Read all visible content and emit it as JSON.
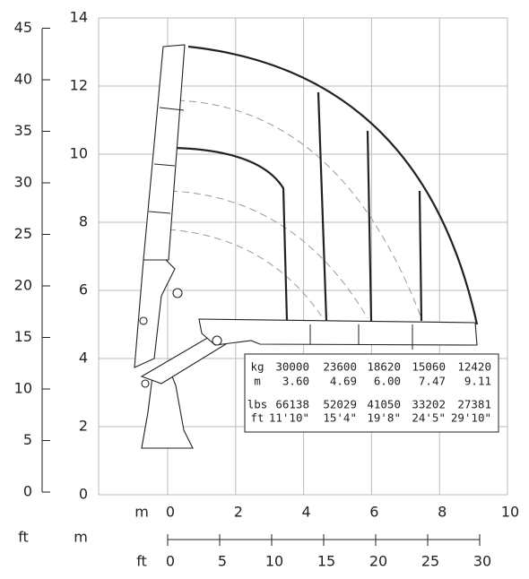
{
  "axes": {
    "meters_left": {
      "ticks": [
        "0",
        "2",
        "4",
        "6",
        "8",
        "10",
        "12",
        "14"
      ]
    },
    "feet_left": {
      "unit": "ft",
      "ticks": [
        "0",
        "5",
        "10",
        "15",
        "20",
        "25",
        "30",
        "35",
        "40",
        "45"
      ]
    },
    "meters_bottom": {
      "unit": "m",
      "ticks": [
        "0",
        "2",
        "4",
        "6",
        "8",
        "10"
      ]
    },
    "feet_bottom": {
      "unit": "ft",
      "ticks": [
        "0",
        "5",
        "10",
        "15",
        "20",
        "25",
        "30"
      ]
    },
    "corner_labels": [
      "ft",
      "m"
    ]
  },
  "table": {
    "rows": [
      [
        "kg",
        "30000",
        "23600",
        "18620",
        "15060",
        "12420"
      ],
      [
        "m",
        "3.60",
        "4.69",
        "6.00",
        "7.47",
        "9.11"
      ],
      [
        "lbs",
        "66138",
        "52029",
        "41050",
        "33202",
        "27381"
      ],
      [
        "ft",
        "11'10\"",
        "15'4\"",
        "19'8\"",
        "24'5\"",
        "29'10\""
      ]
    ]
  }
}
